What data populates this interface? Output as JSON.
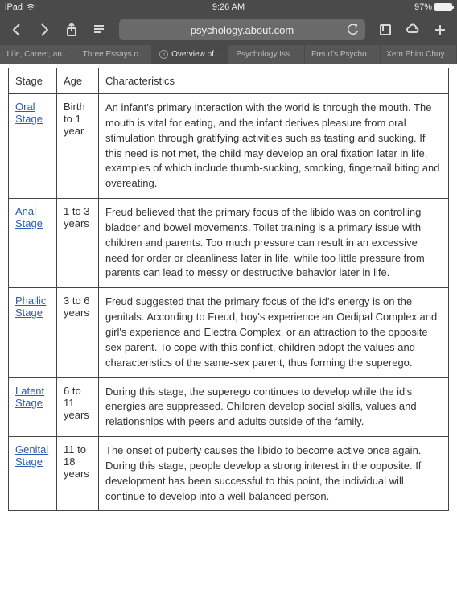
{
  "status": {
    "device": "iPad",
    "time": "9:26 AM",
    "battery_percent": "97%"
  },
  "browser": {
    "url": "psychology.about.com",
    "tabs": [
      {
        "label": "Life, Career, an...",
        "active": false
      },
      {
        "label": "Three Essays o...",
        "active": false
      },
      {
        "label": "Overview of...",
        "active": true
      },
      {
        "label": "Psychology Iss...",
        "active": false
      },
      {
        "label": "Freud's Psycho...",
        "active": false
      },
      {
        "label": "Xem Phim Chuy...",
        "active": false
      }
    ]
  },
  "table": {
    "headers": {
      "stage": "Stage",
      "age": "Age",
      "char": "Characteristics"
    },
    "rows": [
      {
        "stage": "Oral Stage",
        "age": "Birth to 1 year",
        "char": "An infant's primary interaction with the world is through the mouth. The mouth is vital for eating, and the infant derives pleasure from oral stimulation through gratifying activities such as tasting and sucking. If this need is not met, the child may develop an oral fixation later in life, examples of which include thumb-sucking, smoking, fingernail biting and overeating."
      },
      {
        "stage": "Anal Stage",
        "age": "1 to 3 years",
        "char": "Freud believed that the primary focus of the libido was on controlling bladder and bowel movements. Toilet training is a primary issue with children and parents. Too much pressure can result in an excessive need for order or cleanliness later in life, while too little pressure from parents can lead to messy or destructive behavior later in life."
      },
      {
        "stage": "Phallic Stage",
        "age": "3 to 6 years",
        "char": "Freud suggested that the primary focus of the id's energy is on the genitals. According to Freud, boy's experience an Oedipal Complex and girl's experience and Electra Complex, or an attraction to the opposite sex parent. To cope with this conflict, children adopt the values and characteristics of the same-sex parent, thus forming the superego."
      },
      {
        "stage": "Latent Stage",
        "age": "6 to 11 years",
        "char": "During this stage, the superego continues to develop while the id's energies are suppressed. Children develop social skills, values and relationships with peers and adults outside of the family."
      },
      {
        "stage": "Genital Stage",
        "age": "11 to 18 years",
        "char": "The onset of puberty causes the libido to become active once again. During this stage, people develop a strong interest in the opposite. If development has been successful to this point, the individual will continue to develop into a well-balanced person."
      }
    ]
  }
}
